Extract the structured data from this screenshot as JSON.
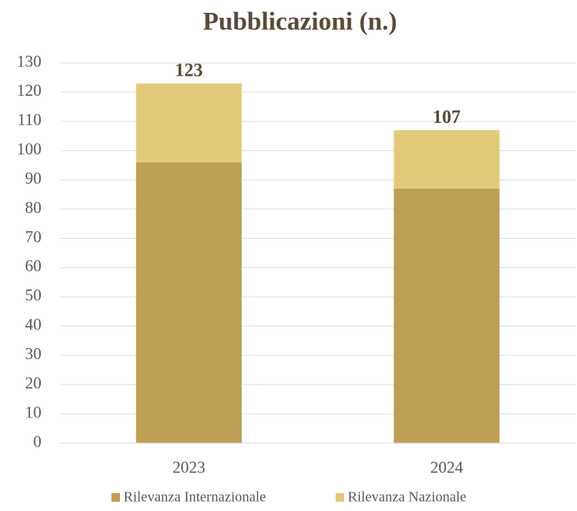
{
  "chart_data": {
    "type": "stacked_bar",
    "title": "Pubblicazioni (n.)",
    "categories": [
      "2023",
      "2024"
    ],
    "series": [
      {
        "name": "Rilevanza Internazionale",
        "color": "#bf9e56",
        "values": [
          96,
          87
        ]
      },
      {
        "name": "Rilevanza Nazionale",
        "color": "#e3c97a",
        "values": [
          27,
          20
        ]
      }
    ],
    "totals": [
      123,
      107
    ],
    "ylim": [
      0,
      130
    ],
    "yticks": [
      0,
      10,
      20,
      30,
      40,
      50,
      60,
      70,
      80,
      90,
      100,
      110,
      120,
      130
    ],
    "grid": true,
    "legend": "bottom"
  }
}
